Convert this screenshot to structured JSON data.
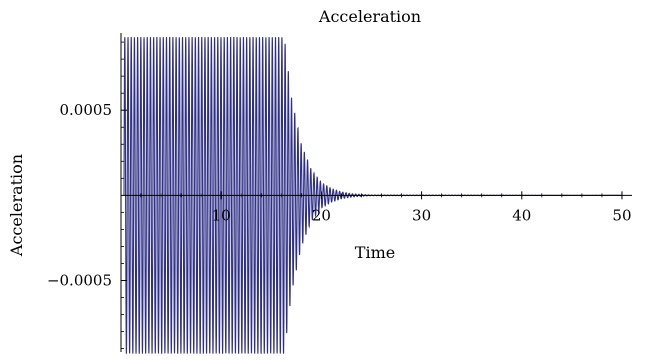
{
  "chart_data": {
    "type": "line",
    "title": "Acceleration",
    "xlabel": "Time",
    "ylabel": "Acceleration",
    "xlim": [
      0,
      51
    ],
    "ylim": [
      -0.00092,
      0.00093
    ],
    "x_ticks": [
      10,
      20,
      30,
      40,
      50
    ],
    "x_tick_labels": [
      "10",
      "20",
      "30",
      "40",
      "50"
    ],
    "y_ticks": [
      0.0005,
      -0.0005
    ],
    "y_tick_labels": [
      "0.0005",
      "−0.0005"
    ],
    "grid": false,
    "legend": "none",
    "series": [
      {
        "x": [
          0.3,
          16.3,
          17,
          18,
          19,
          20,
          21,
          22,
          23,
          24,
          25,
          50
        ],
        "y_envelope": [
          0.00093,
          0.00093,
          0.00058,
          0.0003,
          0.00015,
          7.5e-05,
          4e-05,
          2e-05,
          1e-05,
          5e-06,
          2e-06,
          0
        ],
        "oscillation_period": 0.32
      }
    ],
    "colors": {
      "line": "#2e2f86",
      "axis": "#000000"
    }
  }
}
